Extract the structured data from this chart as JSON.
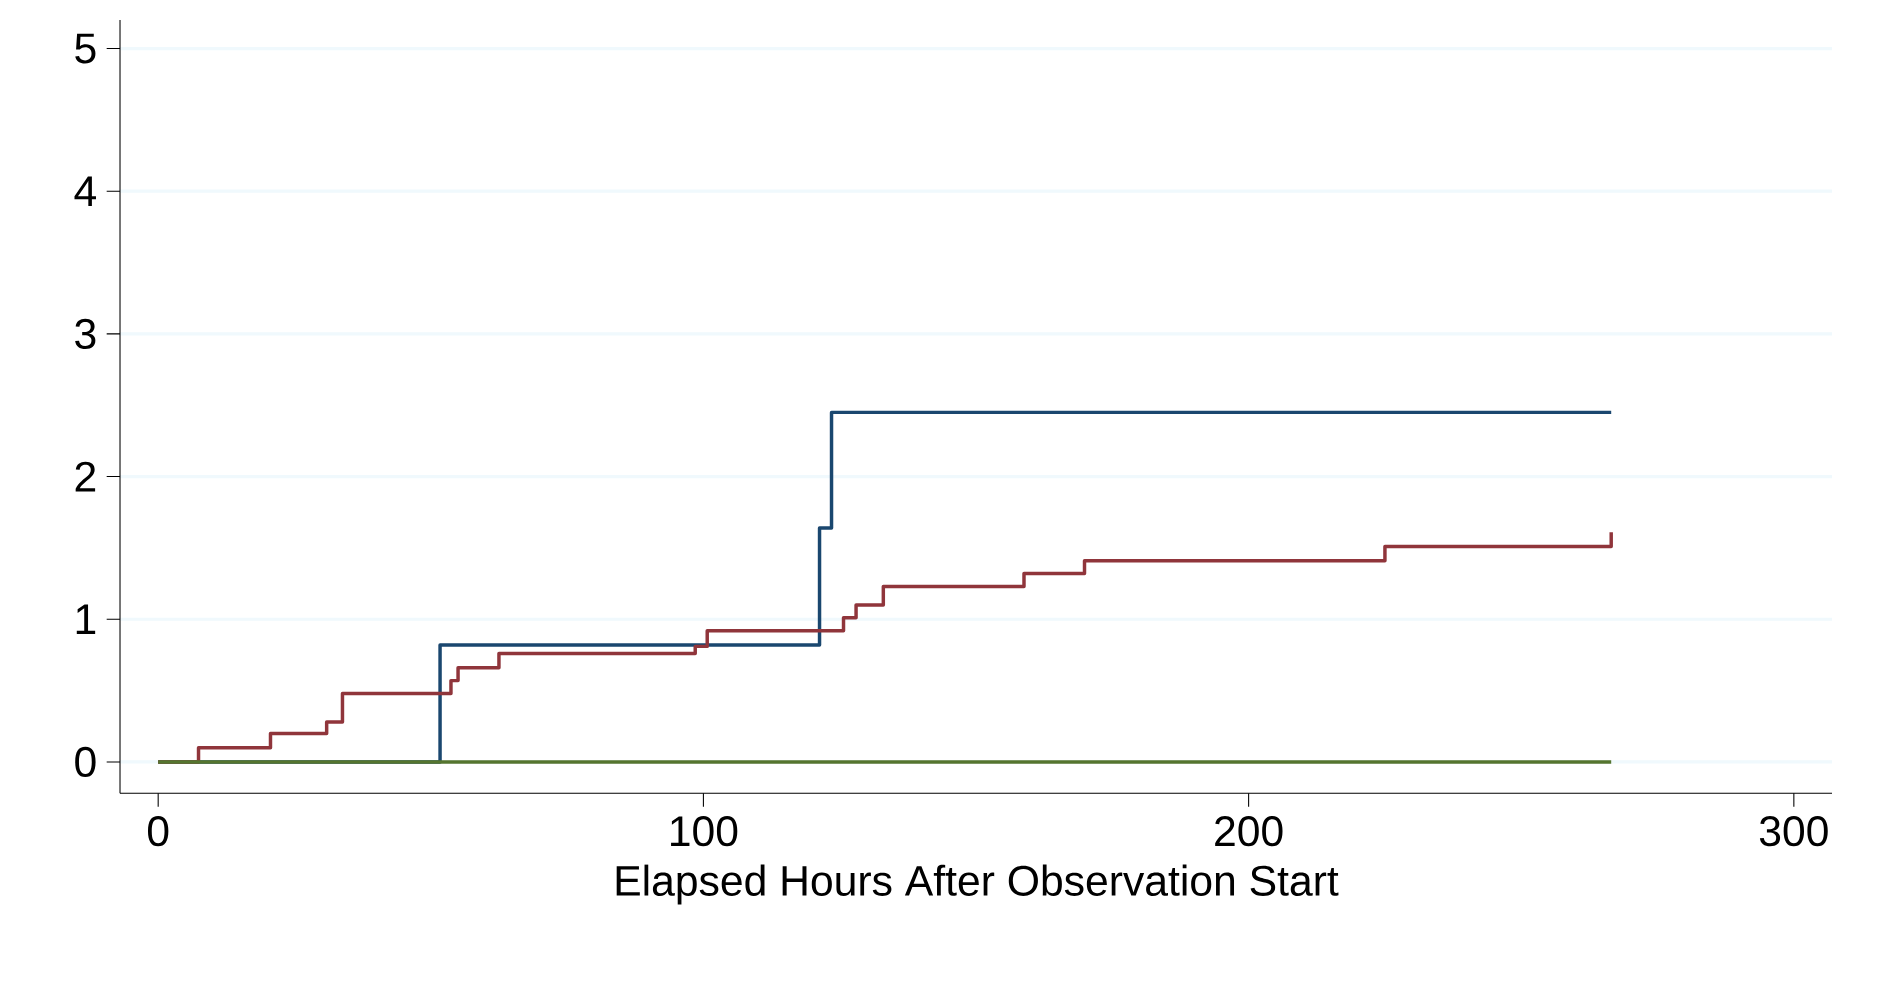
{
  "chart_data": {
    "type": "step",
    "xlabel": "Elapsed Hours After Observation Start",
    "xlim": [
      -7,
      307
    ],
    "ylim": [
      -0.22,
      5.2
    ],
    "xticks": [
      0,
      100,
      200,
      300
    ],
    "yticks": [
      0,
      1,
      2,
      3,
      4,
      5
    ],
    "grid": "y",
    "series": [
      {
        "color": "#1a476f",
        "x": [
          0,
          51.7,
          121.3,
          123.5,
          266.5
        ],
        "values": [
          0,
          0.82,
          1.64,
          2.45,
          2.45
        ]
      },
      {
        "color": "#90353b",
        "x": [
          0,
          7.4,
          20.6,
          30.9,
          33.8,
          53.7,
          55,
          62.5,
          98.5,
          100.7,
          125.7,
          128,
          133,
          158.8,
          169.9,
          225,
          266.5,
          266.5
        ],
        "values": [
          0,
          0.1,
          0.2,
          0.28,
          0.48,
          0.57,
          0.66,
          0.76,
          0.81,
          0.92,
          1.01,
          1.1,
          1.23,
          1.32,
          1.41,
          1.51,
          1.51,
          1.61
        ]
      },
      {
        "color": "#55752f",
        "x": [
          0,
          266.5
        ],
        "values": [
          0,
          0
        ]
      }
    ]
  }
}
